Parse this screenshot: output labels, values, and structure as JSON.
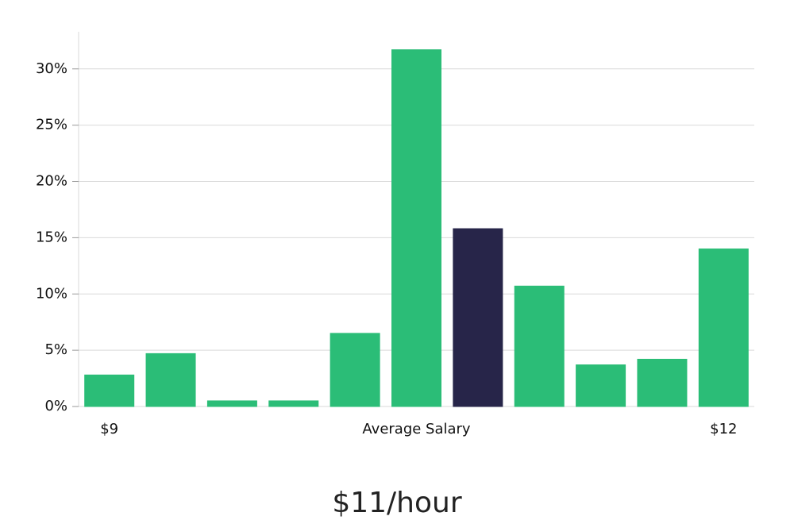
{
  "chart_data": {
    "type": "bar",
    "categories": [
      "$9",
      null,
      null,
      null,
      null,
      "Average Salary",
      null,
      null,
      null,
      null,
      "$12"
    ],
    "values": [
      2.8,
      4.7,
      0.5,
      0.5,
      6.5,
      31.7,
      15.8,
      10.7,
      3.7,
      4.2,
      14.0
    ],
    "colors": [
      "#2bbd77",
      "#2bbd77",
      "#2bbd77",
      "#2bbd77",
      "#2bbd77",
      "#2bbd77",
      "#272549",
      "#2bbd77",
      "#2bbd77",
      "#2bbd77",
      "#2bbd77"
    ],
    "ylim": [
      0,
      33.3
    ],
    "yticks": [
      {
        "value": 0,
        "label": "0%"
      },
      {
        "value": 5,
        "label": "5%"
      },
      {
        "value": 10,
        "label": "10%"
      },
      {
        "value": 15,
        "label": "15%"
      },
      {
        "value": 20,
        "label": "20%"
      },
      {
        "value": 25,
        "label": "25%"
      },
      {
        "value": 30,
        "label": "30%"
      }
    ],
    "grid": true,
    "caption": "$11/hour"
  }
}
